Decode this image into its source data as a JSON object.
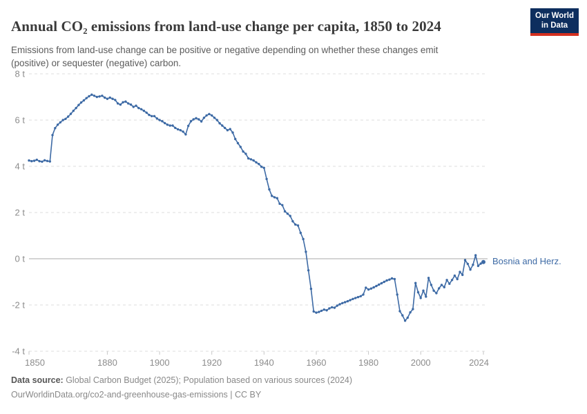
{
  "header": {
    "title": "Annual CO₂ emissions from land-use change per capita, 1850 to 2024",
    "subtitle": "Emissions from land-use change can be positive or negative depending on whether these changes emit\n(positive) or sequester (negative) carbon.",
    "logo": {
      "line1": "Our World",
      "line2": "in Data",
      "bg_color": "#0d2e5e",
      "bar_color": "#d4301f"
    }
  },
  "chart_data": {
    "type": "line",
    "title": "Annual CO₂ emissions from land-use change per capita, 1850 to 2024",
    "xlabel": "",
    "ylabel": "",
    "unit": "t",
    "xlim": [
      1850,
      2024
    ],
    "ylim": [
      -4,
      8
    ],
    "grid": "dashed-horizontal",
    "zero_line": true,
    "x_ticks": [
      1850,
      1880,
      1900,
      1920,
      1940,
      1960,
      1980,
      2000,
      2024
    ],
    "y_ticks": [
      8,
      6,
      4,
      2,
      0,
      -2,
      -4
    ],
    "y_tick_suffix": " t",
    "legend_position": "end-of-line",
    "axis_text_color": "#8c8c8c",
    "grid_color": "#dedede",
    "zero_line_color": "#a8a8a8",
    "series": [
      {
        "name": "Bosnia and Herz.",
        "color": "#3d6aa5",
        "x_start": 1850,
        "x_step": 1,
        "values": [
          4.25,
          4.22,
          4.24,
          4.28,
          4.22,
          4.2,
          4.26,
          4.23,
          4.21,
          5.35,
          5.65,
          5.8,
          5.9,
          6.0,
          6.05,
          6.15,
          6.27,
          6.4,
          6.52,
          6.65,
          6.76,
          6.85,
          6.95,
          7.03,
          7.1,
          7.05,
          7.0,
          7.02,
          7.05,
          6.97,
          6.92,
          6.97,
          6.92,
          6.87,
          6.72,
          6.67,
          6.77,
          6.8,
          6.72,
          6.67,
          6.57,
          6.62,
          6.52,
          6.47,
          6.4,
          6.32,
          6.22,
          6.17,
          6.17,
          6.07,
          6.0,
          5.95,
          5.87,
          5.8,
          5.76,
          5.76,
          5.66,
          5.6,
          5.56,
          5.5,
          5.38,
          5.75,
          5.95,
          6.03,
          6.08,
          6.03,
          5.94,
          6.1,
          6.2,
          6.26,
          6.2,
          6.1,
          6.0,
          5.86,
          5.76,
          5.66,
          5.56,
          5.61,
          5.46,
          5.18,
          5.0,
          4.84,
          4.64,
          4.54,
          4.34,
          4.3,
          4.25,
          4.17,
          4.1,
          3.98,
          3.93,
          3.45,
          3.0,
          2.72,
          2.66,
          2.62,
          2.38,
          2.32,
          2.05,
          1.95,
          1.85,
          1.62,
          1.48,
          1.44,
          1.12,
          0.85,
          0.3,
          -0.5,
          -1.3,
          -2.28,
          -2.33,
          -2.3,
          -2.25,
          -2.2,
          -2.23,
          -2.15,
          -2.1,
          -2.12,
          -2.03,
          -1.97,
          -1.92,
          -1.88,
          -1.84,
          -1.79,
          -1.74,
          -1.7,
          -1.66,
          -1.62,
          -1.55,
          -1.25,
          -1.33,
          -1.29,
          -1.24,
          -1.18,
          -1.12,
          -1.06,
          -1.0,
          -0.94,
          -0.9,
          -0.85,
          -0.88,
          -1.55,
          -2.27,
          -2.45,
          -2.68,
          -2.55,
          -2.32,
          -2.18,
          -1.05,
          -1.45,
          -1.7,
          -1.38,
          -1.64,
          -0.83,
          -1.13,
          -1.38,
          -1.49,
          -1.28,
          -1.13,
          -1.23,
          -0.92,
          -1.08,
          -0.92,
          -0.73,
          -0.88,
          -0.57,
          -0.7,
          -0.06,
          -0.22,
          -0.47,
          -0.26,
          0.15,
          -0.31,
          -0.21,
          -0.14
        ]
      }
    ]
  },
  "footer": {
    "source_label": "Data source:",
    "source_text": " Global Carbon Budget (2025); Population based on various sources (2024)",
    "url": "OurWorldinData.org/co2-and-greenhouse-gas-emissions",
    "license": " | CC BY"
  }
}
